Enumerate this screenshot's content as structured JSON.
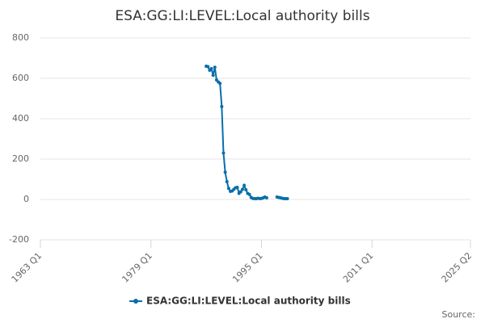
{
  "chart_data": {
    "type": "line",
    "title": "ESA:GG:LI:LEVEL:Local authority bills",
    "x": [
      "1987 Q1",
      "1987 Q2",
      "1987 Q3",
      "1987 Q4",
      "1988 Q1",
      "1988 Q2",
      "1988 Q3",
      "1988 Q4",
      "1989 Q1",
      "1989 Q2",
      "1989 Q3",
      "1989 Q4",
      "1990 Q1",
      "1990 Q2",
      "1990 Q3",
      "1990 Q4",
      "1991 Q1",
      "1991 Q2",
      "1991 Q3",
      "1991 Q4",
      "1992 Q1",
      "1992 Q2",
      "1992 Q3",
      "1992 Q4",
      "1993 Q1",
      "1993 Q2",
      "1993 Q3",
      "1993 Q4",
      "1994 Q1",
      "1994 Q2",
      "1994 Q3",
      "1994 Q4",
      "1995 Q1",
      "1995 Q2",
      "1995 Q3",
      "1995 Q4",
      "1996 Q1",
      "1996 Q2",
      "1996 Q3",
      "1996 Q4",
      "1997 Q1",
      "1997 Q2",
      "1997 Q3",
      "1997 Q4",
      "1998 Q1",
      "1998 Q2",
      "1998 Q3",
      "1998 Q4"
    ],
    "series": [
      {
        "name": "ESA:GG:LI:LEVEL:Local authority bills",
        "color": "#0a6eaa",
        "values": [
          660,
          658,
          640,
          648,
          615,
          655,
          592,
          582,
          575,
          460,
          230,
          135,
          88,
          55,
          40,
          42,
          50,
          58,
          60,
          30,
          38,
          50,
          70,
          48,
          30,
          25,
          10,
          5,
          4,
          4,
          6,
          4,
          5,
          8,
          12,
          8,
          null,
          null,
          null,
          null,
          null,
          12,
          10,
          8,
          6,
          4,
          4,
          4
        ]
      }
    ],
    "xlim": [
      "1963 Q1",
      "2025 Q2"
    ],
    "xticks": [
      "1963 Q1",
      "1979 Q1",
      "1995 Q1",
      "2011 Q1",
      "2025 Q2"
    ],
    "ylim": [
      -200,
      800
    ],
    "yticks": [
      -200,
      0,
      200,
      400,
      600,
      800
    ],
    "grid": true,
    "source": "Source:"
  }
}
